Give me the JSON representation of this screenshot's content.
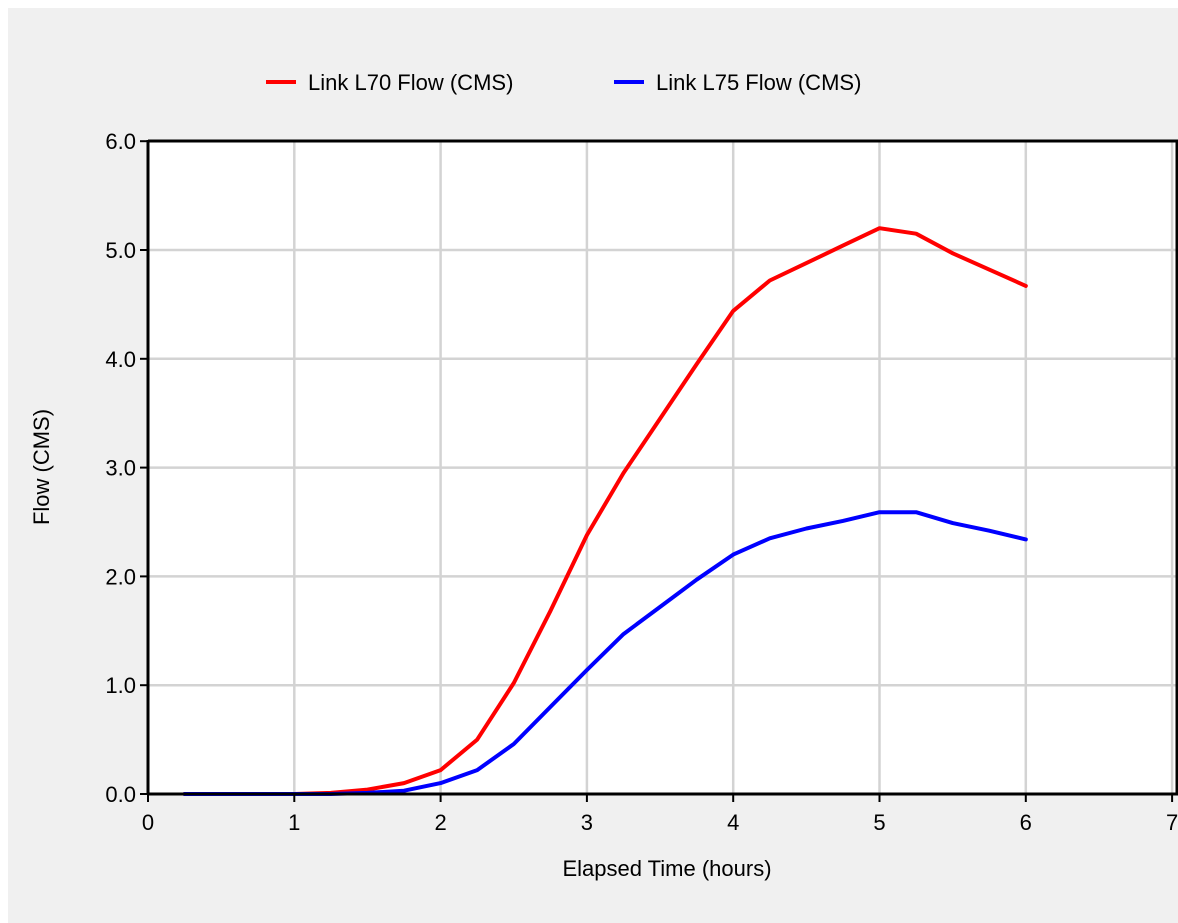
{
  "colors": {
    "panel_background": "#f0f0f0",
    "plot_background": "#ffffff",
    "grid": "#d3d3d3",
    "axis": "#000000"
  },
  "chart_data": {
    "type": "line",
    "title": "",
    "xlabel": "Elapsed Time (hours)",
    "ylabel": "Flow (CMS)",
    "xlim": [
      0,
      7
    ],
    "ylim": [
      0,
      6
    ],
    "xticks": [
      0,
      1,
      2,
      3,
      4,
      5,
      6,
      7
    ],
    "xtick_labels": [
      "0",
      "1",
      "2",
      "3",
      "4",
      "5",
      "6",
      "7"
    ],
    "yticks": [
      0,
      1,
      2,
      3,
      4,
      5,
      6
    ],
    "ytick_labels": [
      "0.0",
      "1.0",
      "2.0",
      "3.0",
      "4.0",
      "5.0",
      "6.0"
    ],
    "grid": true,
    "legend_position": "top",
    "series": [
      {
        "name": "Link L70 Flow (CMS)",
        "color": "#ff0000",
        "x": [
          0.25,
          0.5,
          0.75,
          1.0,
          1.25,
          1.5,
          1.75,
          2.0,
          2.25,
          2.5,
          2.75,
          3.0,
          3.25,
          3.5,
          3.75,
          4.0,
          4.25,
          4.5,
          4.75,
          5.0,
          5.25,
          5.5,
          5.75,
          6.0
        ],
        "values": [
          0.0,
          0.0,
          0.0,
          0.0,
          0.01,
          0.04,
          0.1,
          0.22,
          0.5,
          1.02,
          1.68,
          2.38,
          2.95,
          3.45,
          3.95,
          4.44,
          4.72,
          4.88,
          5.04,
          5.2,
          5.15,
          4.97,
          4.82,
          4.67
        ]
      },
      {
        "name": "Link L75 Flow (CMS)",
        "color": "#0000ff",
        "x": [
          0.25,
          0.5,
          0.75,
          1.0,
          1.25,
          1.5,
          1.75,
          2.0,
          2.25,
          2.5,
          2.75,
          3.0,
          3.25,
          3.5,
          3.75,
          4.0,
          4.25,
          4.5,
          4.75,
          5.0,
          5.25,
          5.5,
          5.75,
          6.0
        ],
        "values": [
          0.0,
          0.0,
          0.0,
          0.0,
          0.0,
          0.01,
          0.03,
          0.1,
          0.22,
          0.46,
          0.8,
          1.14,
          1.47,
          1.72,
          1.97,
          2.2,
          2.35,
          2.44,
          2.51,
          2.59,
          2.59,
          2.49,
          2.42,
          2.34
        ]
      }
    ]
  }
}
